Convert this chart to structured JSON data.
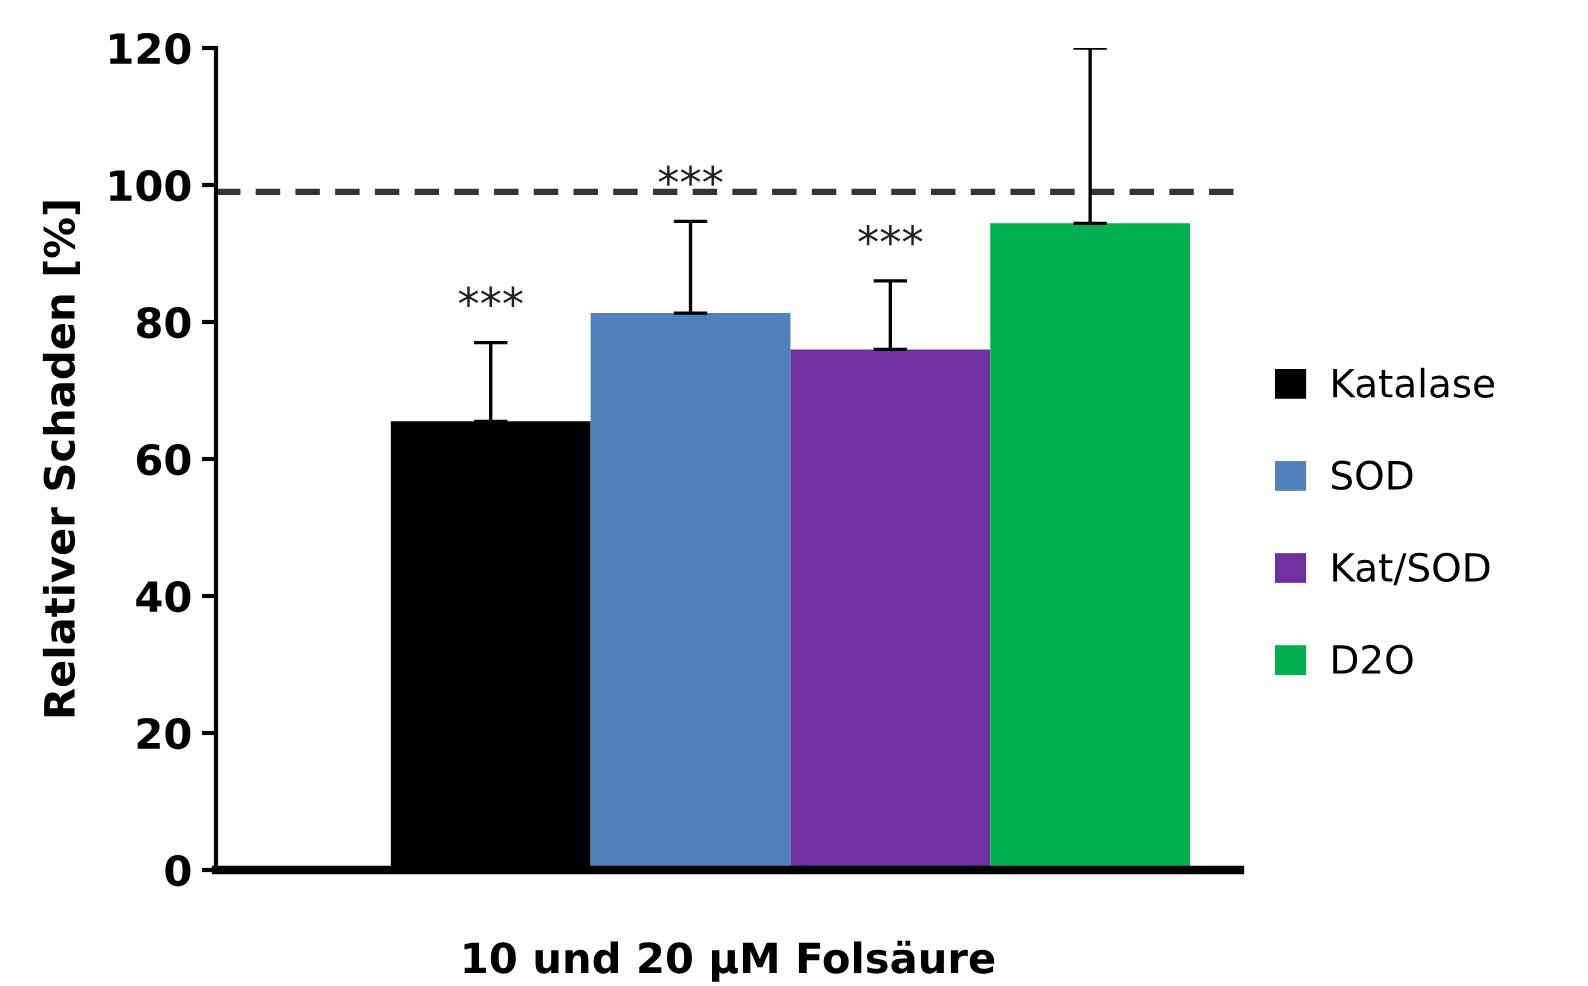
{
  "chart_data": {
    "type": "bar",
    "categories": [
      null
    ],
    "xlabel": "10 und 20 µM Folsäure",
    "ylabel": "Relativer Schaden [%]",
    "ylim": [
      0,
      120
    ],
    "yticks": [
      0,
      20,
      40,
      60,
      80,
      100,
      120
    ],
    "grid": false,
    "legend": "right",
    "series": [
      {
        "name": "Katalase",
        "color": "#000000",
        "values": [
          65.5
        ],
        "errors": [
          [
            65.5,
            77
          ]
        ],
        "value_labels": [
          "***"
        ]
      },
      {
        "name": "SOD",
        "color": "#4f81bd",
        "values": [
          81.3
        ],
        "errors": [
          [
            81.3,
            94.7
          ]
        ],
        "value_labels": [
          "***"
        ]
      },
      {
        "name": "Kat/SOD",
        "color": "#7030a0",
        "values": [
          76
        ],
        "errors": [
          [
            76,
            86
          ]
        ],
        "value_labels": [
          "***"
        ]
      },
      {
        "name": "D2O",
        "color": "#00b050",
        "values": [
          94.4
        ],
        "errors": [
          [
            94.4,
            120
          ]
        ],
        "value_labels": [
          null
        ]
      }
    ],
    "ref_lines": [
      {
        "axis": "y",
        "value": 99,
        "color": "#333333",
        "line_style": "dashed"
      }
    ]
  }
}
